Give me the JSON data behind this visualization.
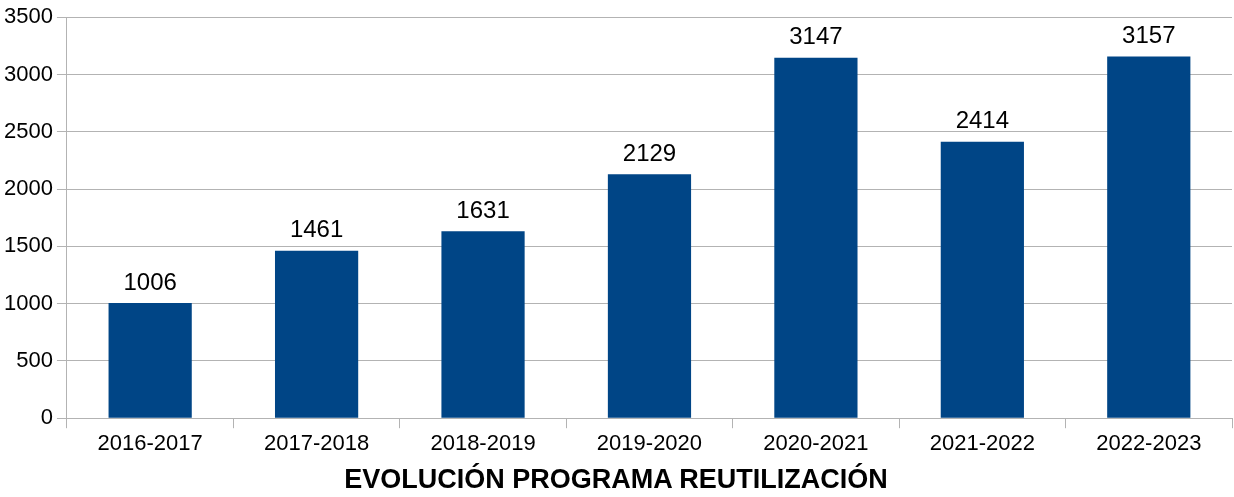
{
  "chart_data": {
    "type": "bar",
    "title": "EVOLUCIÓN PROGRAMA REUTILIZACIÓN",
    "categories": [
      "2016-2017",
      "2017-2018",
      "2018-2019",
      "2019-2020",
      "2020-2021",
      "2021-2022",
      "2022-2023"
    ],
    "values": [
      1006,
      1461,
      1631,
      2129,
      3147,
      2414,
      3157
    ],
    "color": "#004586",
    "ylim": [
      0,
      3500
    ],
    "yticks": [
      0,
      500,
      1000,
      1500,
      2000,
      2500,
      3000,
      3500
    ],
    "grid": "y",
    "data_labels": true
  }
}
